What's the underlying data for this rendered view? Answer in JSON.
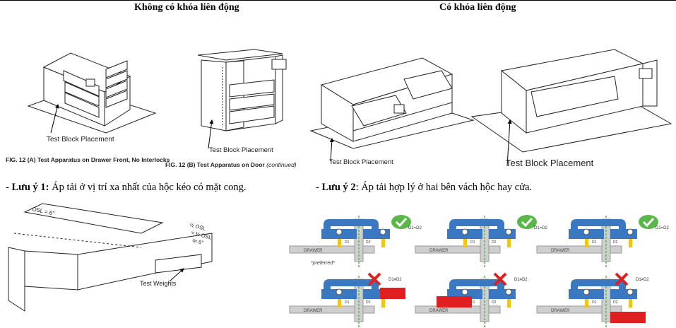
{
  "headings": {
    "left": "Không có khóa liên động",
    "right": "Có khóa liên động"
  },
  "figures": {
    "fig_a_label": "Test Block Placement",
    "fig_a_caption": "FIG. 12 (A) Test Apparatus on Drawer Front, No Interlocks",
    "fig_b_label": "Test Block Placement",
    "fig_b_caption": "FIG. 12 (B) Test Apparatus on Door",
    "fig_b_caption_suffix": "(continued)",
    "fig_c_label": "Test Block Placement",
    "fig_d_label": "Test Block Placement",
    "drawer_dim_osl": "OSL = 6\"",
    "drawer_dim_half": "½ OSL",
    "drawer_dim_or": "or 6\"",
    "drawer_dim_other": "= ½ OSL",
    "drawer_test_weights": "Test Weights",
    "preferred": "*preferred*"
  },
  "notes": {
    "note1_prefix": "- ",
    "note1_bold": "Lưu ý 1:",
    "note1_text": " Áp tải ở vị trí xa nhất của hộc kéo có mặt cong.",
    "note2_prefix": "- ",
    "note2_bold": "Lưu ý 2",
    "note2_text": ": Áp tải hợp lý ở hai bên vách hộc hay cửa."
  },
  "diagram_labels": {
    "drawer": "DRAWER",
    "d1_eq_d2": "D1=D2",
    "d1_neq_d2": "D1≠D2",
    "d1": "D1",
    "d2": "D2"
  },
  "colors": {
    "blue": "#3a78c2",
    "yellow": "#f0c419",
    "red": "#e02020",
    "green": "#5ab84a",
    "gray": "#cfcfcf"
  }
}
